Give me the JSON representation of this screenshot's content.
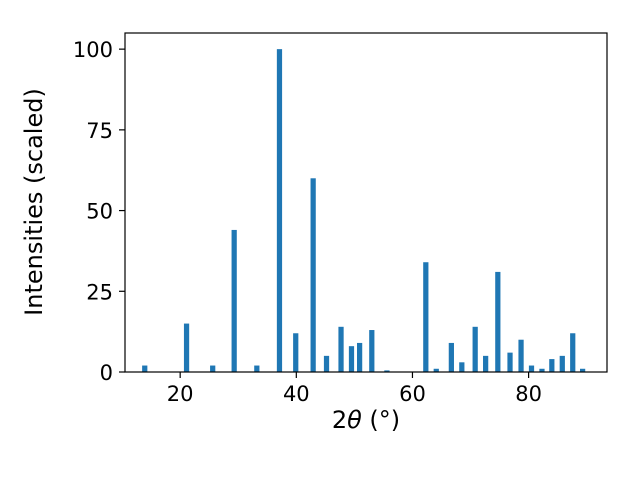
{
  "figure": {
    "background": "#ffffff"
  },
  "chart_data": {
    "type": "bar",
    "title": "",
    "xlabel": "2θ (°)",
    "xlabel_parts": {
      "prefix": "2",
      "theta": "θ",
      "suffix": " (°)"
    },
    "ylabel": "Intensities (scaled)",
    "bar_color": "#1f77b4",
    "axis_color": "#000000",
    "grid": false,
    "legend": null,
    "xlim": [
      10.5,
      93.5
    ],
    "ylim": [
      0,
      105
    ],
    "xticks": [
      20,
      40,
      60,
      80
    ],
    "yticks": [
      0,
      25,
      50,
      75,
      100
    ],
    "bar_width": 0.9,
    "x": [
      13.9,
      21.1,
      25.6,
      29.3,
      33.2,
      37.1,
      39.9,
      42.9,
      45.2,
      47.7,
      49.5,
      50.9,
      53.0,
      55.6,
      62.3,
      64.1,
      66.7,
      68.5,
      70.8,
      72.6,
      74.7,
      76.8,
      78.7,
      80.5,
      82.3,
      84.0,
      85.8,
      87.6,
      89.3
    ],
    "values": [
      2,
      15,
      2,
      44,
      2,
      100,
      12,
      60,
      5,
      14,
      8,
      9,
      13,
      0.5,
      34,
      1,
      9,
      3,
      14,
      5,
      31,
      6,
      10,
      2,
      1,
      4,
      5,
      12,
      1
    ]
  }
}
